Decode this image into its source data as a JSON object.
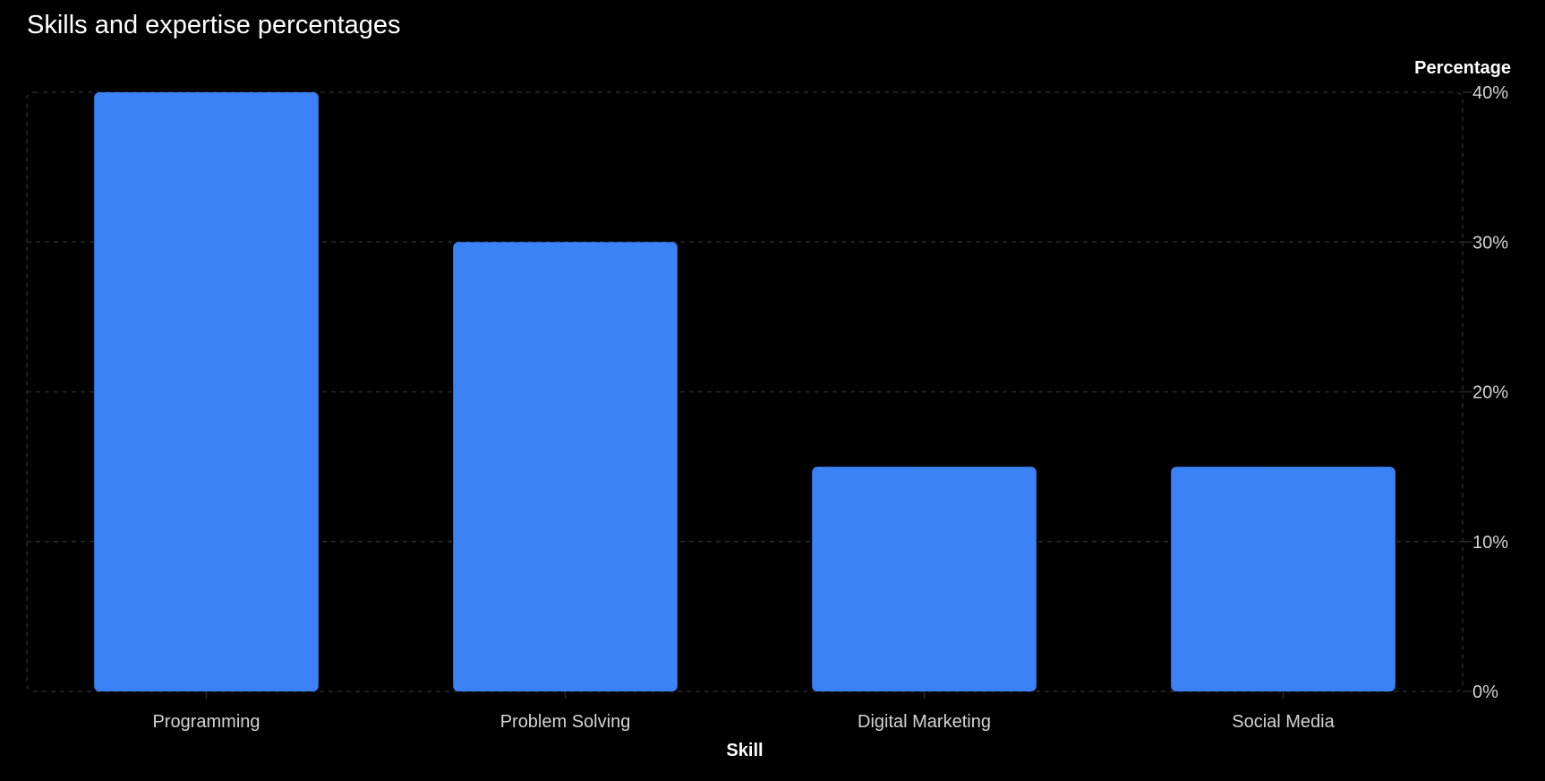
{
  "subtitle": "Skills and expertise percentages",
  "colors": {
    "bar": "#3b82f6",
    "background": "#000000",
    "grid": "#2a2a2a",
    "tick_text": "#d4d4d4",
    "axis_title": "#ffffff"
  },
  "chart_data": {
    "type": "bar",
    "title": "",
    "subtitle": "Skills and expertise percentages",
    "categories": [
      "Programming",
      "Problem Solving",
      "Digital Marketing",
      "Social Media"
    ],
    "values": [
      40,
      30,
      15,
      15
    ],
    "xlabel": "Skill",
    "ylabel": "Percentage",
    "ylim": [
      0,
      40
    ],
    "yticks": [
      0,
      10,
      20,
      30,
      40
    ],
    "ytick_labels": [
      "0%",
      "10%",
      "20%",
      "30%",
      "40%"
    ],
    "y_axis_side": "right",
    "grid": true
  }
}
